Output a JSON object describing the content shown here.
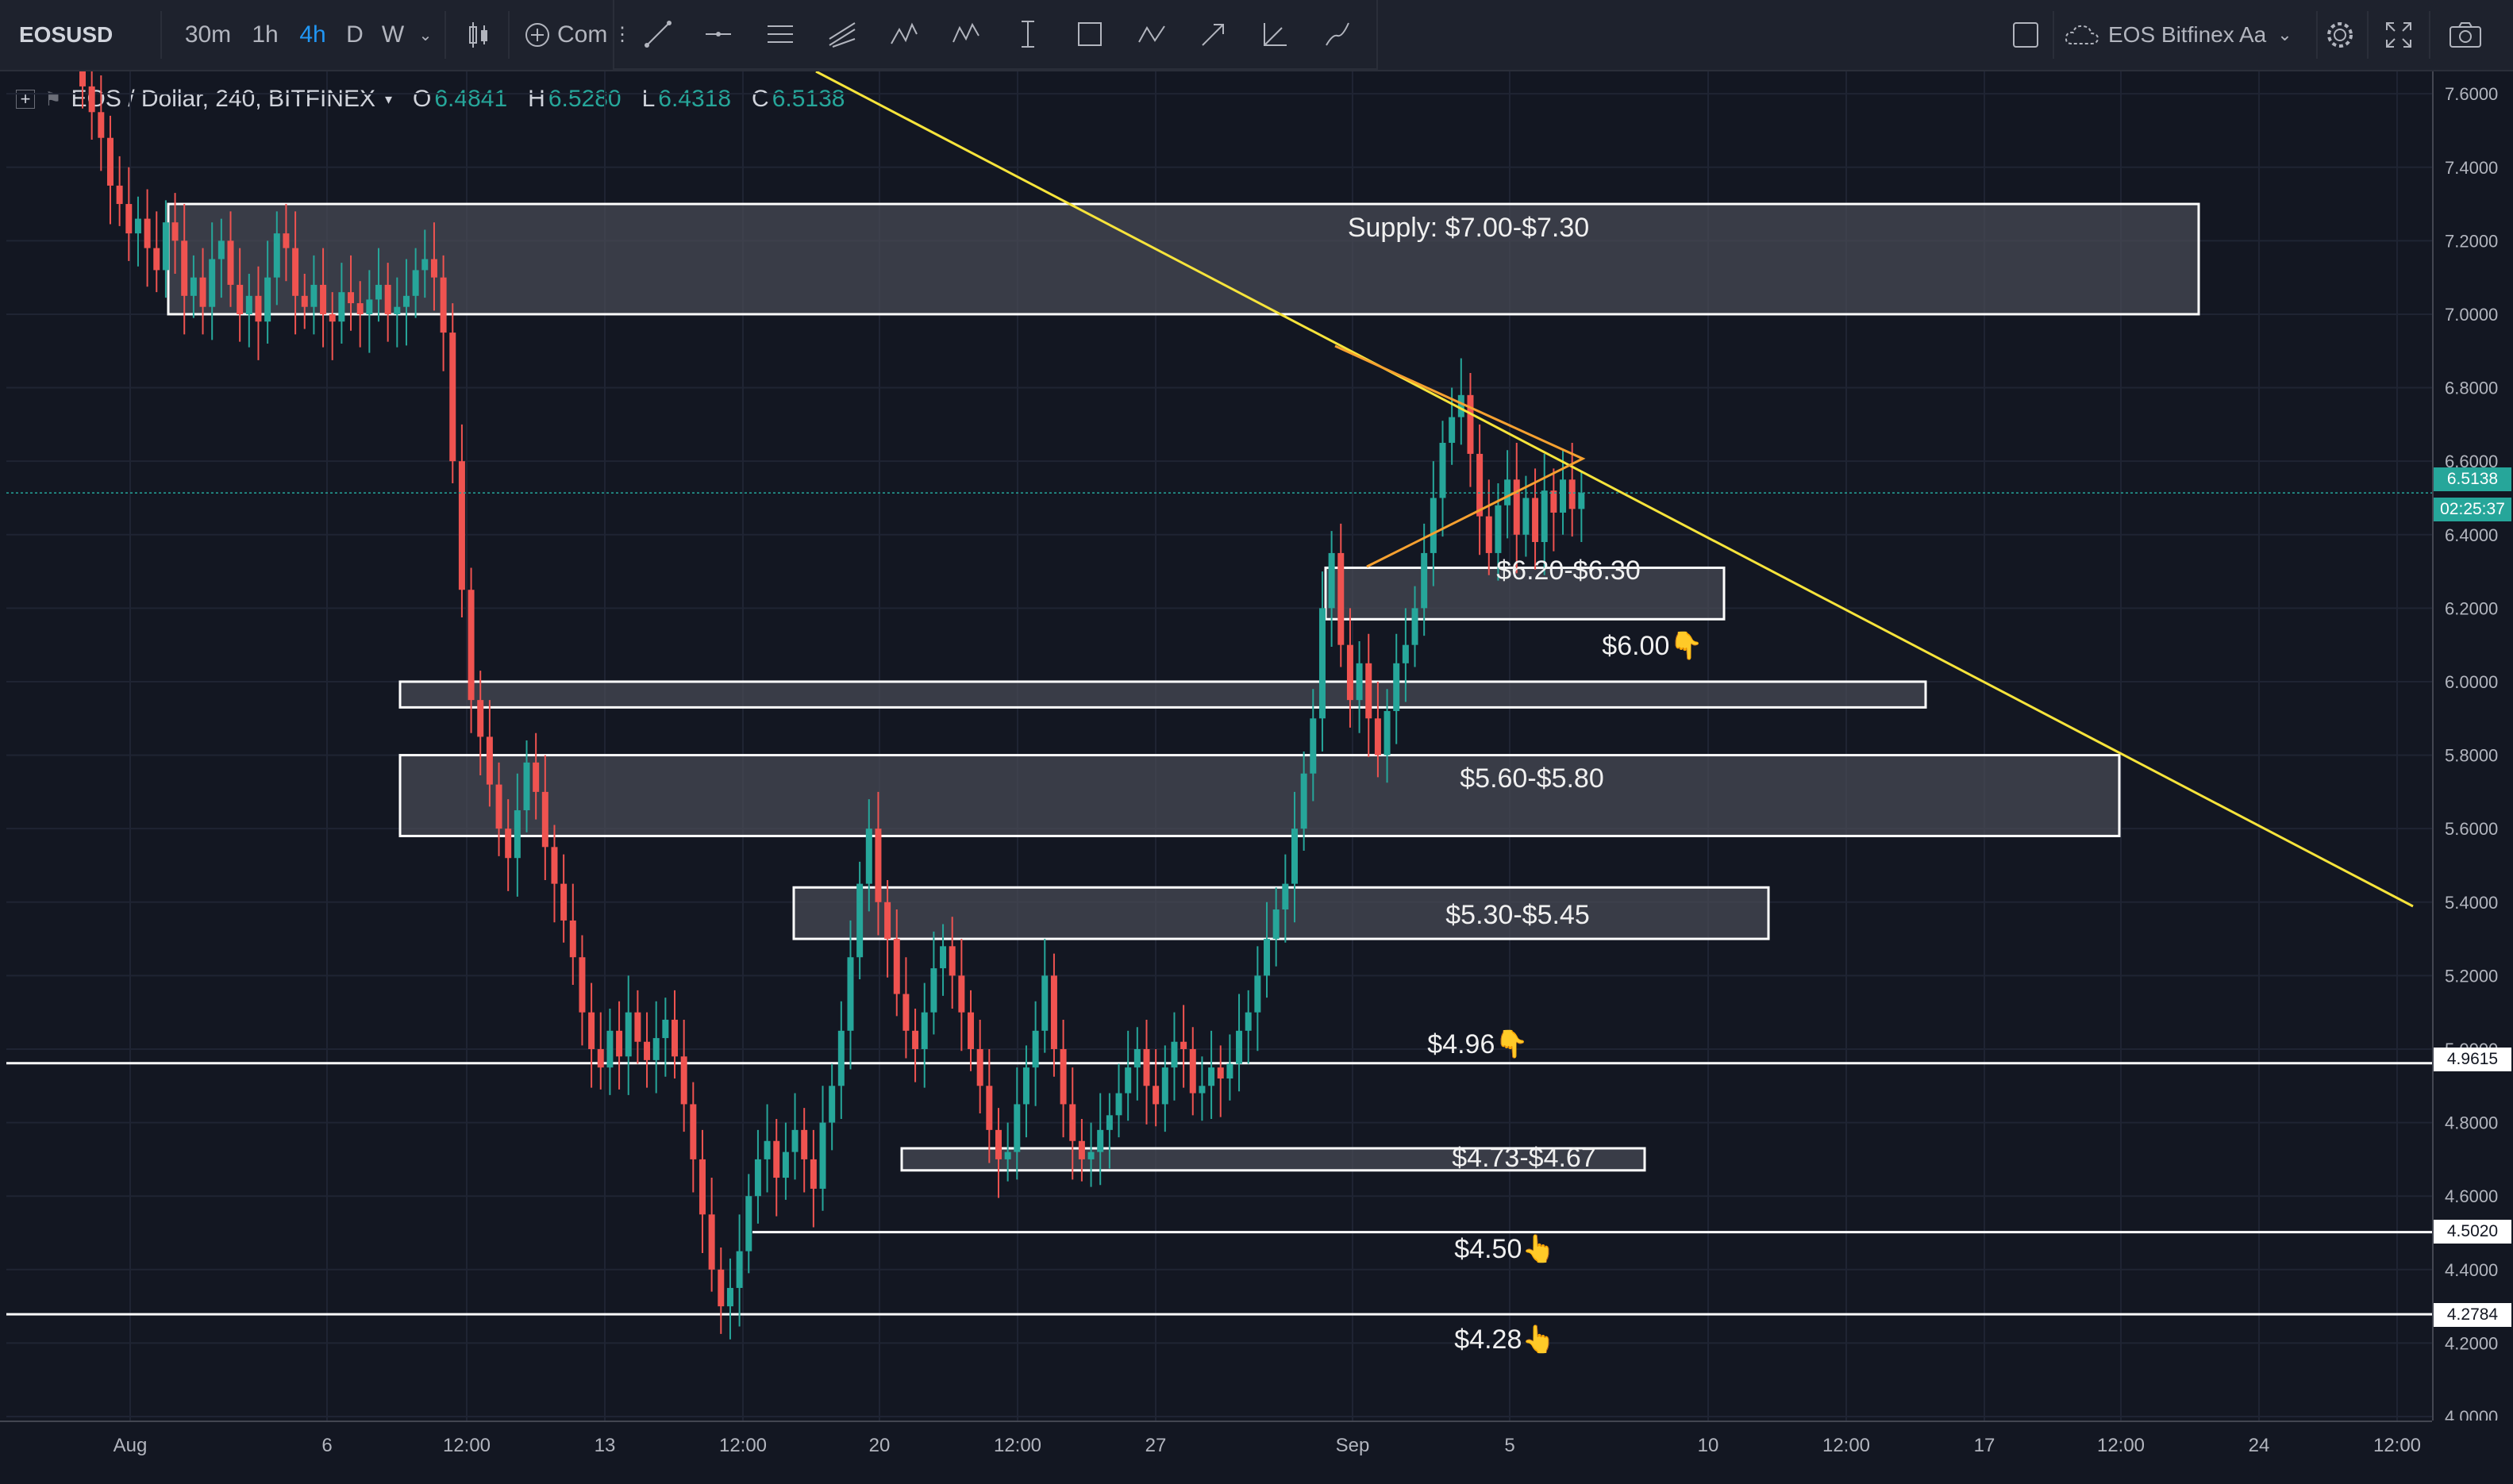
{
  "toolbar": {
    "symbol": "EOSUSD",
    "timeframes": [
      "30m",
      "1h",
      "4h",
      "D",
      "W"
    ],
    "active_timeframe": "4h",
    "compare_label": "Com",
    "layout_name": "EOS Bitfinex Aa"
  },
  "legend": {
    "title": "EOS / Dollar, 240, BITFINEX",
    "open_label": "O",
    "open": "6.4841",
    "high_label": "H",
    "high": "6.5280",
    "low_label": "L",
    "low": "6.4318",
    "close_label": "C",
    "close": "6.5138"
  },
  "price_axis": {
    "ticks": [
      "7.6000",
      "7.4000",
      "7.2000",
      "7.0000",
      "6.8000",
      "6.6000",
      "6.4000",
      "6.2000",
      "6.0000",
      "5.8000",
      "5.6000",
      "5.4000",
      "5.2000",
      "5.0000",
      "4.8000",
      "4.6000",
      "4.4000",
      "4.2000",
      "4.0000"
    ],
    "current_price": "6.5138",
    "countdown": "02:25:37",
    "level_badges": [
      "4.9615",
      "4.5020",
      "4.2784"
    ]
  },
  "time_axis": {
    "labels": [
      "Aug",
      "6",
      "12:00",
      "13",
      "12:00",
      "20",
      "12:00",
      "27",
      "Sep",
      "5",
      "10",
      "12:00",
      "17",
      "12:00",
      "24",
      "12:00"
    ]
  },
  "annotations": {
    "supply": "Supply: $7.00-$7.30",
    "z620": "$6.20-$6.30",
    "z600": "$6.00👇",
    "z560": "$5.60-$5.80",
    "z530": "$5.30-$5.45",
    "z496": "$4.96👇",
    "z473": "$4.73-$4.67",
    "z450": "$4.50👆",
    "z428": "$4.28👆"
  },
  "colors": {
    "background": "#131722",
    "up": "#26a69a",
    "down": "#ef5350",
    "trendline": "#f7e43b",
    "triangle": "#f7a130",
    "zone_fill": "#4a4d57",
    "zone_border": "#ffffff"
  },
  "chart_data": {
    "type": "candlestick",
    "ylim": [
      4.0,
      7.65
    ],
    "price_levels": [
      4.9615,
      4.502,
      4.2784
    ],
    "zones": [
      {
        "label": "Supply: $7.00-$7.30",
        "low": 7.0,
        "high": 7.3
      },
      {
        "label": "$6.20-$6.30",
        "low": 6.17,
        "high": 6.31
      },
      {
        "label": "$6.00",
        "low": 5.93,
        "high": 6.0
      },
      {
        "label": "$5.60-$5.80",
        "low": 5.58,
        "high": 5.8
      },
      {
        "label": "$5.30-$5.45",
        "low": 5.3,
        "high": 5.44
      },
      {
        "label": "$4.73-$4.67",
        "low": 4.67,
        "high": 4.73
      }
    ],
    "closes": [
      7.62,
      7.55,
      7.48,
      7.35,
      7.3,
      7.22,
      7.26,
      7.18,
      7.12,
      7.25,
      7.2,
      7.05,
      7.1,
      7.02,
      7.15,
      7.2,
      7.08,
      7.0,
      7.05,
      6.98,
      7.1,
      7.22,
      7.18,
      7.05,
      7.02,
      7.08,
      7.0,
      6.98,
      7.06,
      7.03,
      7.0,
      7.04,
      7.08,
      7.0,
      7.02,
      7.05,
      7.12,
      7.15,
      7.1,
      6.95,
      6.6,
      6.25,
      5.95,
      5.85,
      5.72,
      5.6,
      5.52,
      5.65,
      5.78,
      5.7,
      5.55,
      5.45,
      5.35,
      5.25,
      5.1,
      5.0,
      4.95,
      5.05,
      4.98,
      5.1,
      5.02,
      4.97,
      5.03,
      5.08,
      4.98,
      4.85,
      4.7,
      4.55,
      4.4,
      4.3,
      4.35,
      4.45,
      4.6,
      4.7,
      4.75,
      4.65,
      4.72,
      4.78,
      4.7,
      4.62,
      4.8,
      4.9,
      5.05,
      5.25,
      5.45,
      5.6,
      5.4,
      5.3,
      5.15,
      5.05,
      5.0,
      5.1,
      5.22,
      5.28,
      5.2,
      5.1,
      5.0,
      4.9,
      4.78,
      4.7,
      4.72,
      4.85,
      4.95,
      5.05,
      5.2,
      5.0,
      4.85,
      4.75,
      4.7,
      4.72,
      4.78,
      4.82,
      4.88,
      4.95,
      5.0,
      4.9,
      4.85,
      4.95,
      5.02,
      5.0,
      4.88,
      4.9,
      4.95,
      4.92,
      4.96,
      5.05,
      5.1,
      5.2,
      5.3,
      5.38,
      5.45,
      5.6,
      5.75,
      5.9,
      6.2,
      6.35,
      6.1,
      5.95,
      6.05,
      5.9,
      5.8,
      5.92,
      6.05,
      6.1,
      6.2,
      6.35,
      6.5,
      6.65,
      6.72,
      6.78,
      6.62,
      6.45,
      6.35,
      6.48,
      6.55,
      6.4,
      6.5,
      6.38,
      6.52,
      6.46,
      6.55,
      6.47,
      6.5138
    ],
    "trendline": {
      "from": [
        0,
        7.65
      ],
      "to": [
        230,
        5.35
      ]
    }
  }
}
